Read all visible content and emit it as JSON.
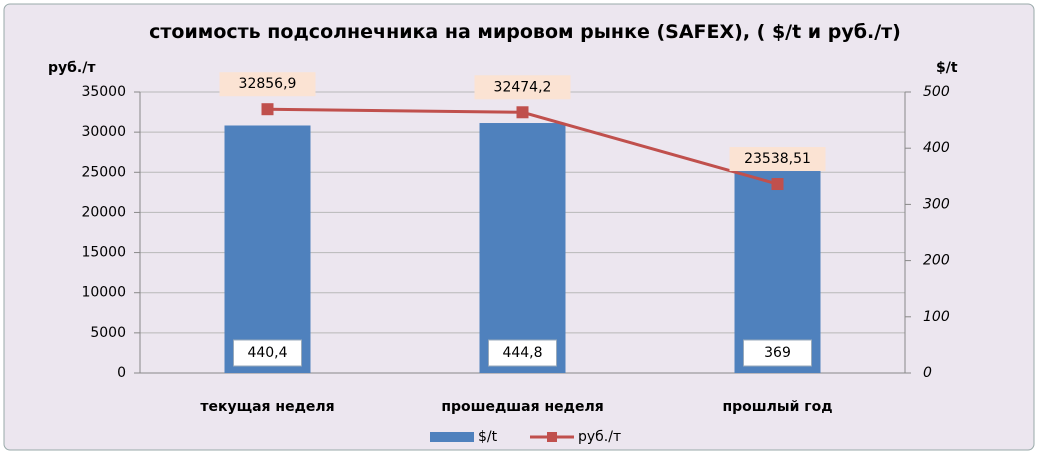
{
  "chart_data": {
    "type": "bar-line",
    "title": "стоимость подсолнечника на мировом рынке (SAFEX), ( $/t и руб./т)",
    "ylabel": "руб./т",
    "y2label": "$/t",
    "categories": [
      "текущая  неделя",
      "прошедшая неделя",
      "прошлый год"
    ],
    "ylim": [
      0,
      35000
    ],
    "yticks": [
      0,
      5000,
      10000,
      15000,
      20000,
      25000,
      30000,
      35000
    ],
    "y2lim": [
      0,
      500
    ],
    "y2ticks": [
      0,
      100,
      200,
      300,
      400,
      500
    ],
    "grid": true,
    "legend": "bottom",
    "series": [
      {
        "name": "$/t",
        "type": "bar",
        "axis": "y2",
        "color": "#4f81bd",
        "values": [
          440.4,
          444.8,
          369
        ],
        "value_labels": [
          "440,4",
          "444,8",
          "369"
        ]
      },
      {
        "name": "руб./т",
        "type": "line",
        "axis": "y",
        "color": "#c0504d",
        "values": [
          32856.9,
          32474.2,
          23538.51
        ],
        "value_labels": [
          "32856,9",
          "32474,2",
          "23538,51"
        ]
      }
    ]
  }
}
